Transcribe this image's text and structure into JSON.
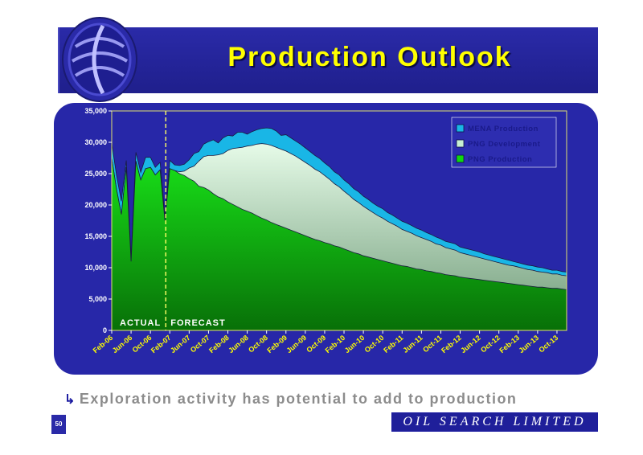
{
  "slide": {
    "title": "Production Outlook",
    "footnote": "Exploration activity has potential to add to production",
    "footnote_bullet": "↳",
    "page_number": "50",
    "brand": "OIL SEARCH LIMITED"
  },
  "colors": {
    "header": "#2a2aa8",
    "panel": "#2727a8",
    "title": "#ffff00",
    "mena": "#19b6e6",
    "png_development": "#c8f0d2",
    "png_production": "#10d810"
  },
  "icons": {
    "logo": "oil-search-globe-logo",
    "bullet": "arrow-bullet-icon"
  },
  "chart_data": {
    "type": "area",
    "stacked": true,
    "title": "",
    "xlabel": "",
    "ylabel": "",
    "ylim": [
      0,
      35000
    ],
    "yticks": [
      "0",
      "5,000",
      "10,000",
      "15,000",
      "20,000",
      "25,000",
      "30,000",
      "35,000"
    ],
    "xticks": [
      "Feb-06",
      "Jun-06",
      "Oct-06",
      "Feb-07",
      "Jun-07",
      "Oct-07",
      "Feb-08",
      "Jun-08",
      "Oct-08",
      "Feb-09",
      "Jun-09",
      "Oct-09",
      "Feb-10",
      "Jun-10",
      "Oct-10",
      "Feb-11",
      "Jun-11",
      "Oct-11",
      "Feb-12",
      "Jun-12",
      "Oct-12",
      "Feb-13",
      "Jun-13",
      "Oct-13"
    ],
    "x": [
      "Feb-06",
      "Mar-06",
      "Apr-06",
      "May-06",
      "Jun-06",
      "Jul-06",
      "Aug-06",
      "Sep-06",
      "Oct-06",
      "Nov-06",
      "Dec-06",
      "Jan-07",
      "Feb-07",
      "Mar-07",
      "Apr-07",
      "May-07",
      "Jun-07",
      "Jul-07",
      "Aug-07",
      "Sep-07",
      "Oct-07",
      "Nov-07",
      "Dec-07",
      "Jan-08",
      "Feb-08",
      "Mar-08",
      "Apr-08",
      "May-08",
      "Jun-08",
      "Jul-08",
      "Aug-08",
      "Sep-08",
      "Oct-08",
      "Nov-08",
      "Dec-08",
      "Jan-09",
      "Feb-09",
      "Mar-09",
      "Apr-09",
      "May-09",
      "Jun-09",
      "Jul-09",
      "Aug-09",
      "Sep-09",
      "Oct-09",
      "Nov-09",
      "Dec-09",
      "Jan-10",
      "Feb-10",
      "Mar-10",
      "Apr-10",
      "May-10",
      "Jun-10",
      "Jul-10",
      "Aug-10",
      "Sep-10",
      "Oct-10",
      "Nov-10",
      "Dec-10",
      "Jan-11",
      "Feb-11",
      "Mar-11",
      "Apr-11",
      "May-11",
      "Jun-11",
      "Jul-11",
      "Aug-11",
      "Sep-11",
      "Oct-11",
      "Nov-11",
      "Dec-11",
      "Jan-12",
      "Feb-12",
      "Mar-12",
      "Apr-12",
      "May-12",
      "Jun-12",
      "Jul-12",
      "Aug-12",
      "Sep-12",
      "Oct-12",
      "Nov-12",
      "Dec-12",
      "Jan-13",
      "Feb-13",
      "Mar-13",
      "Apr-13",
      "May-13",
      "Jun-13",
      "Jul-13",
      "Aug-13",
      "Sep-13",
      "Oct-13",
      "Nov-13",
      "Dec-13"
    ],
    "series": [
      {
        "name": "PNG Production",
        "color": "#10d810",
        "values": [
          27500,
          22500,
          18500,
          26000,
          11000,
          27000,
          24000,
          25800,
          26000,
          24800,
          25600,
          17500,
          25800,
          25500,
          25000,
          24700,
          24200,
          23800,
          23000,
          22800,
          22400,
          21800,
          21300,
          21000,
          20500,
          20100,
          19700,
          19300,
          19000,
          18700,
          18300,
          17900,
          17600,
          17200,
          16900,
          16600,
          16300,
          16000,
          15700,
          15400,
          15100,
          14800,
          14500,
          14300,
          14000,
          13800,
          13500,
          13300,
          13000,
          12700,
          12400,
          12200,
          11900,
          11700,
          11500,
          11300,
          11100,
          10900,
          10700,
          10500,
          10300,
          10200,
          10000,
          9800,
          9700,
          9500,
          9400,
          9200,
          9100,
          8900,
          8800,
          8700,
          8500,
          8400,
          8300,
          8200,
          8100,
          8000,
          7900,
          7800,
          7700,
          7600,
          7500,
          7400,
          7300,
          7200,
          7100,
          7000,
          6900,
          6900,
          6800,
          6700,
          6700,
          6600,
          6500
        ]
      },
      {
        "name": "PNG Development",
        "color": "#c8f0d2",
        "values": [
          0,
          0,
          0,
          0,
          0,
          0,
          0,
          0,
          0,
          0,
          0,
          0,
          0,
          0,
          300,
          700,
          1700,
          2400,
          4000,
          4900,
          5500,
          6100,
          6700,
          7200,
          8200,
          8900,
          9400,
          9900,
          10400,
          10800,
          11400,
          11900,
          12100,
          12300,
          12300,
          12300,
          12300,
          12200,
          12100,
          11900,
          11700,
          11500,
          11200,
          11000,
          10700,
          10300,
          9900,
          9600,
          9200,
          8900,
          8500,
          8200,
          7900,
          7600,
          7300,
          7000,
          6800,
          6500,
          6300,
          6100,
          5800,
          5600,
          5500,
          5300,
          5100,
          5000,
          4800,
          4600,
          4500,
          4300,
          4200,
          4100,
          3900,
          3800,
          3700,
          3600,
          3500,
          3400,
          3300,
          3200,
          3100,
          3000,
          2900,
          2900,
          2800,
          2700,
          2600,
          2600,
          2500,
          2400,
          2400,
          2300,
          2300,
          2200,
          2200
        ]
      },
      {
        "name": "MENA Production",
        "color": "#19b6e6",
        "values": [
          2400,
          2200,
          2100,
          1100,
          500,
          1400,
          1200,
          1800,
          1600,
          1200,
          1200,
          600,
          1300,
          900,
          1000,
          1100,
          1300,
          2000,
          1500,
          2000,
          2200,
          2500,
          1900,
          2500,
          2400,
          2000,
          2500,
          2400,
          1900,
          2200,
          2300,
          2400,
          2600,
          2700,
          2600,
          2200,
          2600,
          2500,
          2400,
          2400,
          2300,
          2200,
          2200,
          2100,
          2000,
          2000,
          1900,
          1900,
          1800,
          1800,
          1700,
          1700,
          1600,
          1600,
          1500,
          1500,
          1500,
          1400,
          1400,
          1300,
          1300,
          1300,
          1200,
          1200,
          1200,
          1100,
          1100,
          1100,
          1000,
          1000,
          1000,
          1000,
          900,
          900,
          900,
          900,
          900,
          800,
          800,
          800,
          800,
          800,
          800,
          700,
          700,
          700,
          700,
          700,
          700,
          700,
          600,
          600,
          600,
          600,
          600
        ]
      }
    ],
    "legend": {
      "position": "top-right",
      "order": [
        "MENA Production",
        "PNG Development",
        "PNG Production"
      ]
    },
    "annotations": {
      "actual_label": "ACTUAL",
      "forecast_label": "FORECAST",
      "divider_at": "Jan-07"
    },
    "grid": false
  }
}
